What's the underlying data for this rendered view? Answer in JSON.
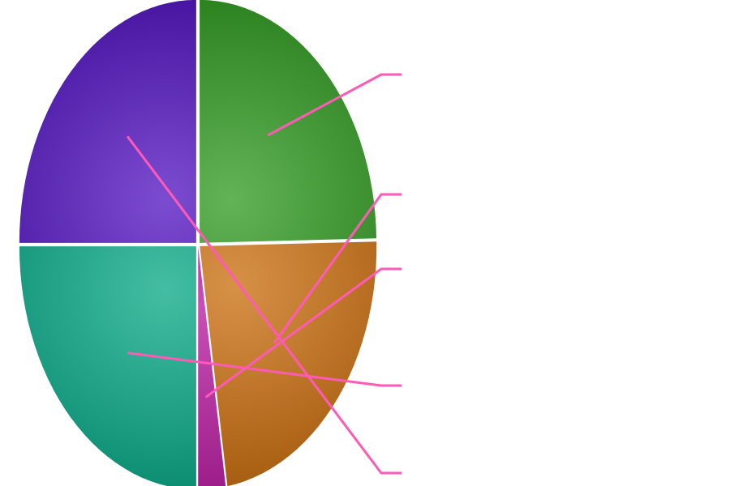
{
  "chart_data": {
    "type": "pie",
    "title": "",
    "values": [
      24.7,
      22.8,
      2.5,
      25.0,
      25.0
    ],
    "colors": [
      "#2e9a1e",
      "#c96c0a",
      "#b5149e",
      "#04a884",
      "#5010c0"
    ],
    "labels": [
      "",
      "",
      "",
      "",
      ""
    ],
    "legend": "none",
    "grid": false
  },
  "leader_color": "#ff5ab8"
}
